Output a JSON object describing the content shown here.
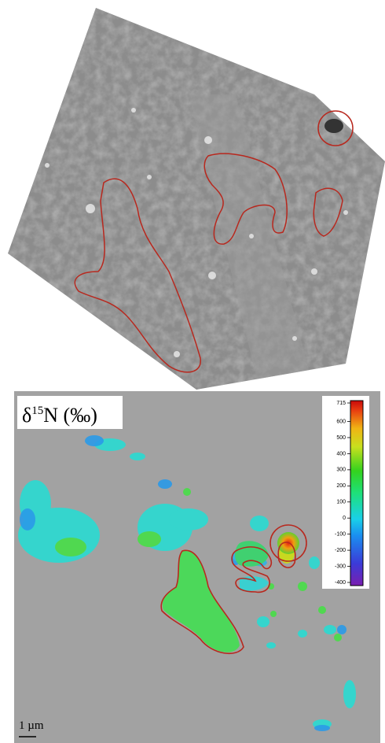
{
  "micrograph_panel": {},
  "map_panel": {
    "label": {
      "symbol": "δ",
      "superscript": "15",
      "rest": "N (‰)"
    },
    "colorbar": {
      "ticks": [
        715,
        600,
        500,
        400,
        300,
        200,
        100,
        0,
        -100,
        -200,
        -300,
        -400
      ]
    },
    "scale_bar": {
      "label": "1 µm"
    }
  }
}
